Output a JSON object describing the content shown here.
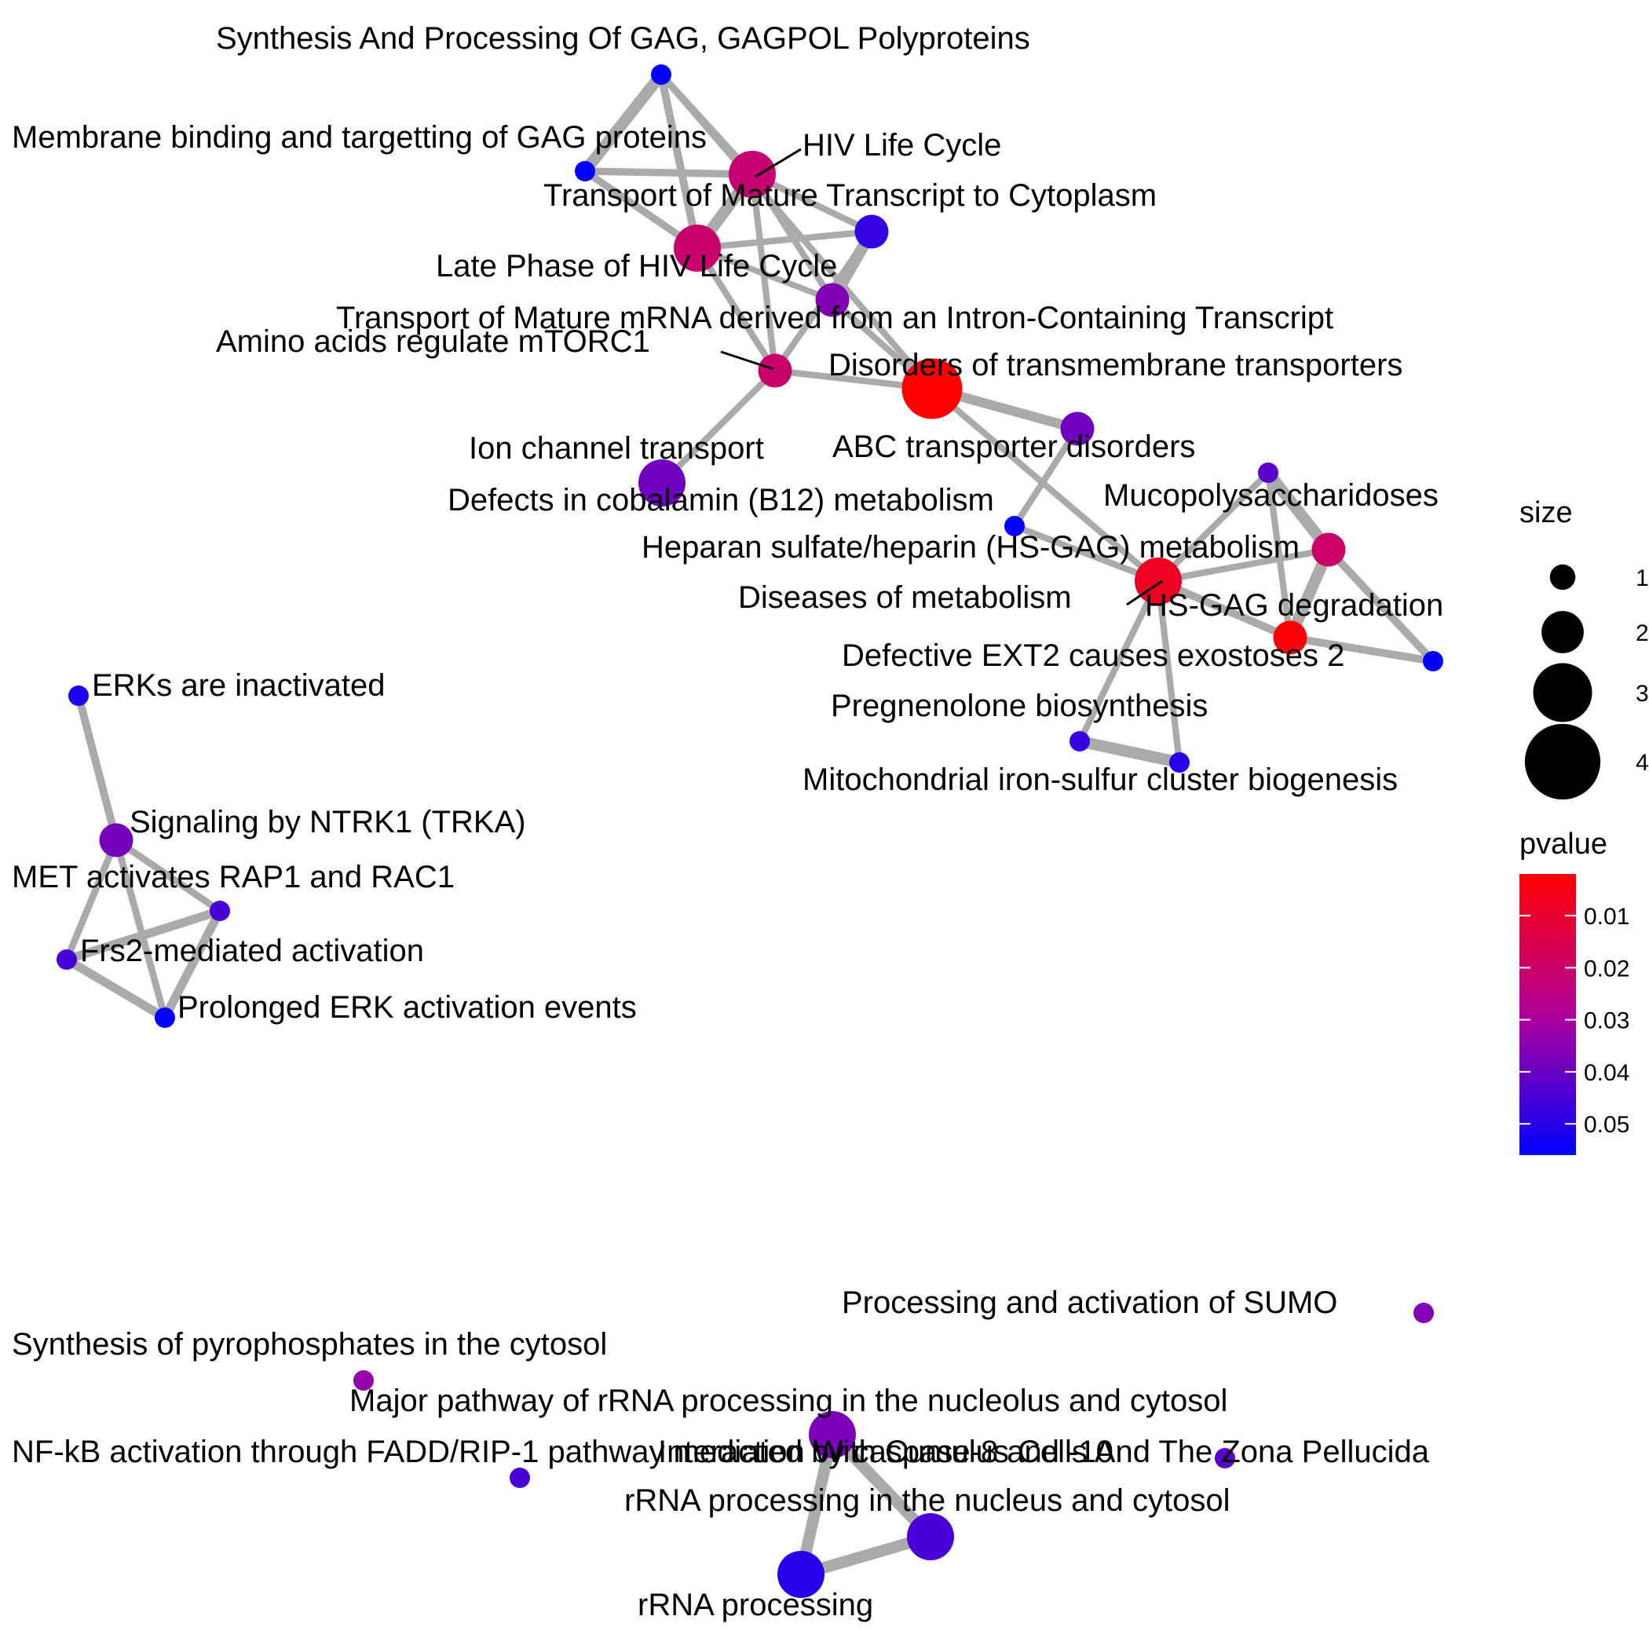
{
  "nodes": [
    {
      "id": "gagpol",
      "label": "Synthesis And Processing Of GAG, GAGPOL Polyproteins",
      "size": 1,
      "pvalue": 0.056
    },
    {
      "id": "membrane",
      "label": "Membrane binding and targetting of GAG proteins",
      "size": 1,
      "pvalue": 0.056
    },
    {
      "id": "hiv",
      "label": "HIV Life Cycle",
      "size": 3,
      "pvalue": 0.022
    },
    {
      "id": "matureTranscript",
      "label": "Transport of Mature Transcript to Cytoplasm",
      "size": 2,
      "pvalue": 0.048
    },
    {
      "id": "latePhase",
      "label": "Late Phase of HIV Life Cycle",
      "size": 3,
      "pvalue": 0.021
    },
    {
      "id": "matureMrna",
      "label": "Transport of Mature mRNA derived from an Intron-Containing Transcript",
      "size": 2,
      "pvalue": 0.036
    },
    {
      "id": "aminoAcids",
      "label": "Amino acids regulate mTORC1",
      "size": 2,
      "pvalue": 0.021
    },
    {
      "id": "disordersTm",
      "label": "Disorders of transmembrane transporters",
      "size": 4,
      "pvalue": 0.002
    },
    {
      "id": "ionChannel",
      "label": "Ion channel transport",
      "size": 3,
      "pvalue": 0.039
    },
    {
      "id": "abc",
      "label": "ABC transporter disorders",
      "size": 2,
      "pvalue": 0.039
    },
    {
      "id": "cobalamin",
      "label": "Defects in cobalamin (B12) metabolism",
      "size": 1,
      "pvalue": 0.056
    },
    {
      "id": "mps",
      "label": "Mucopolysaccharidoses",
      "size": 1,
      "pvalue": 0.042
    },
    {
      "id": "hsgagMet",
      "label": "Heparan sulfate/heparin (HS-GAG) metabolism",
      "size": 2,
      "pvalue": 0.02
    },
    {
      "id": "diseasesMet",
      "label": "Diseases of metabolism",
      "size": 3,
      "pvalue": 0.008
    },
    {
      "id": "hsgagDeg",
      "label": "HS-GAG degradation",
      "size": 2,
      "pvalue": 0.003
    },
    {
      "id": "ext2",
      "label": "Defective EXT2 causes exostoses 2",
      "size": 1,
      "pvalue": 0.056
    },
    {
      "id": "pregnenolone",
      "label": "Pregnenolone biosynthesis",
      "size": 1,
      "pvalue": 0.048
    },
    {
      "id": "mito",
      "label": "Mitochondrial iron-sulfur cluster biogenesis",
      "size": 1,
      "pvalue": 0.05
    },
    {
      "id": "erks",
      "label": "ERKs are inactivated",
      "size": 1,
      "pvalue": 0.052
    },
    {
      "id": "ntrk1",
      "label": "Signaling by NTRK1 (TRKA)",
      "size": 2,
      "pvalue": 0.038
    },
    {
      "id": "met",
      "label": "MET activates RAP1 and RAC1",
      "size": 1,
      "pvalue": 0.045
    },
    {
      "id": "frs2",
      "label": "Frs2-mediated activation",
      "size": 1,
      "pvalue": 0.045
    },
    {
      "id": "prolonged",
      "label": "Prolonged ERK activation events",
      "size": 1,
      "pvalue": 0.056
    },
    {
      "id": "sumo",
      "label": "Processing and activation of SUMO",
      "size": 1,
      "pvalue": 0.036
    },
    {
      "id": "pyrophos",
      "label": "Synthesis of pyrophosphates in the cytosol",
      "size": 1,
      "pvalue": 0.033
    },
    {
      "id": "majorRrna",
      "label": "Major pathway of rRNA processing in the nucleolus and cytosol",
      "size": 3,
      "pvalue": 0.037
    },
    {
      "id": "nfkb",
      "label": "NF-kB activation through FADD/RIP-1 pathway mediated by caspase-8 and -10",
      "size": 1,
      "pvalue": 0.045
    },
    {
      "id": "zona",
      "label": "Interaction With Cumulus Cells And The Zona Pellucida",
      "size": 1,
      "pvalue": 0.042
    },
    {
      "id": "rrnaNucleus",
      "label": "rRNA processing in the nucleus and cytosol",
      "size": 3,
      "pvalue": 0.045
    },
    {
      "id": "rrna",
      "label": "rRNA processing",
      "size": 3,
      "pvalue": 0.05
    }
  ],
  "edges": [
    {
      "source": "gagpol",
      "target": "membrane",
      "weight": 0.9
    },
    {
      "source": "gagpol",
      "target": "hiv",
      "weight": 0.4
    },
    {
      "source": "gagpol",
      "target": "latePhase",
      "weight": 0.5
    },
    {
      "source": "gagpol",
      "target": "disordersTm",
      "weight": 0.35
    },
    {
      "source": "membrane",
      "target": "hiv",
      "weight": 0.45
    },
    {
      "source": "membrane",
      "target": "latePhase",
      "weight": 0.45
    },
    {
      "source": "hiv",
      "target": "latePhase",
      "weight": 0.9
    },
    {
      "source": "hiv",
      "target": "matureTranscript",
      "weight": 0.35
    },
    {
      "source": "hiv",
      "target": "matureMrna",
      "weight": 0.35
    },
    {
      "source": "hiv",
      "target": "aminoAcids",
      "weight": 0.35
    },
    {
      "source": "latePhase",
      "target": "matureTranscript",
      "weight": 0.35
    },
    {
      "source": "latePhase",
      "target": "aminoAcids",
      "weight": 0.35
    },
    {
      "source": "latePhase",
      "target": "matureMrna",
      "weight": 0.3
    },
    {
      "source": "matureTranscript",
      "target": "matureMrna",
      "weight": 0.9
    },
    {
      "source": "matureTranscript",
      "target": "aminoAcids",
      "weight": 0.35
    },
    {
      "source": "matureMrna",
      "target": "disordersTm",
      "weight": 0.35
    },
    {
      "source": "aminoAcids",
      "target": "disordersTm",
      "weight": 0.35
    },
    {
      "source": "aminoAcids",
      "target": "ionChannel",
      "weight": 0.35
    },
    {
      "source": "disordersTm",
      "target": "abc",
      "weight": 0.7
    },
    {
      "source": "disordersTm",
      "target": "diseasesMet",
      "weight": 0.35
    },
    {
      "source": "abc",
      "target": "cobalamin",
      "weight": 0.35
    },
    {
      "source": "cobalamin",
      "target": "diseasesMet",
      "weight": 0.35
    },
    {
      "source": "mps",
      "target": "diseasesMet",
      "weight": 0.35
    },
    {
      "source": "mps",
      "target": "hsgagMet",
      "weight": 0.9
    },
    {
      "source": "mps",
      "target": "hsgagDeg",
      "weight": 0.35
    },
    {
      "source": "hsgagMet",
      "target": "diseasesMet",
      "weight": 0.35
    },
    {
      "source": "hsgagMet",
      "target": "hsgagDeg",
      "weight": 0.9
    },
    {
      "source": "hsgagMet",
      "target": "ext2",
      "weight": 0.5
    },
    {
      "source": "diseasesMet",
      "target": "hsgagDeg",
      "weight": 0.5
    },
    {
      "source": "diseasesMet",
      "target": "pregnenolone",
      "weight": 0.35
    },
    {
      "source": "diseasesMet",
      "target": "mito",
      "weight": 0.35
    },
    {
      "source": "hsgagDeg",
      "target": "ext2",
      "weight": 0.5
    },
    {
      "source": "pregnenolone",
      "target": "mito",
      "weight": 0.9
    },
    {
      "source": "erks",
      "target": "ntrk1",
      "weight": 0.5
    },
    {
      "source": "ntrk1",
      "target": "met",
      "weight": 0.4
    },
    {
      "source": "ntrk1",
      "target": "frs2",
      "weight": 0.4
    },
    {
      "source": "ntrk1",
      "target": "prolonged",
      "weight": 0.4
    },
    {
      "source": "met",
      "target": "frs2",
      "weight": 0.6
    },
    {
      "source": "met",
      "target": "prolonged",
      "weight": 0.6
    },
    {
      "source": "frs2",
      "target": "prolonged",
      "weight": 0.6
    },
    {
      "source": "majorRrna",
      "target": "rrnaNucleus",
      "weight": 0.9
    },
    {
      "source": "majorRrna",
      "target": "rrna",
      "weight": 0.9
    },
    {
      "source": "rrnaNucleus",
      "target": "rrna",
      "weight": 0.9
    }
  ],
  "legend": {
    "size_title": "size",
    "size_breaks": [
      {
        "value": 1,
        "label": "1"
      },
      {
        "value": 2,
        "label": "2"
      },
      {
        "value": 3,
        "label": "3"
      },
      {
        "value": 4,
        "label": "4"
      }
    ],
    "pvalue_title": "pvalue",
    "pvalue_range": [
      0.002,
      0.056
    ],
    "pvalue_ticks": [
      {
        "value": 0.01,
        "label": "0.01"
      },
      {
        "value": 0.02,
        "label": "0.02"
      },
      {
        "value": 0.03,
        "label": "0.03"
      },
      {
        "value": 0.04,
        "label": "0.04"
      },
      {
        "value": 0.05,
        "label": "0.05"
      }
    ],
    "colors": {
      "low": "#ff0000",
      "high": "#0000ff"
    }
  }
}
